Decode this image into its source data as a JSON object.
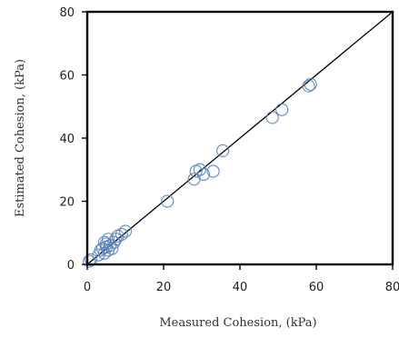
{
  "chart_data": {
    "type": "scatter",
    "title": "",
    "xlabel": "Measured Cohesion, (kPa)",
    "ylabel": "Estimated Cohesion, (kPa)",
    "xlim": [
      0,
      80
    ],
    "ylim": [
      0,
      80
    ],
    "xticks": [
      "0",
      "20",
      "40",
      "60",
      "80"
    ],
    "yticks": [
      "0",
      "20",
      "40",
      "60",
      "80"
    ],
    "grid": false,
    "legend": "none",
    "reference_line": {
      "x": [
        0,
        80
      ],
      "y": [
        0,
        80
      ]
    },
    "series": [
      {
        "color": "#5b87c0",
        "marker": "open-circle",
        "points": [
          [
            0.5,
            1.0
          ],
          [
            1.0,
            1.5
          ],
          [
            3.0,
            3.0
          ],
          [
            3.5,
            4.5
          ],
          [
            4.0,
            5.0
          ],
          [
            4.5,
            3.5
          ],
          [
            5.0,
            5.5
          ],
          [
            5.5,
            4.5
          ],
          [
            5.0,
            6.5
          ],
          [
            6.0,
            6.0
          ],
          [
            6.5,
            5.0
          ],
          [
            7.0,
            7.0
          ],
          [
            7.5,
            8.0
          ],
          [
            8.0,
            9.0
          ],
          [
            9.0,
            9.5
          ],
          [
            10.0,
            10.5
          ],
          [
            4.5,
            7.0
          ],
          [
            5.5,
            8.0
          ],
          [
            21.0,
            20.0
          ],
          [
            28.0,
            27.0
          ],
          [
            28.5,
            29.5
          ],
          [
            29.5,
            30.0
          ],
          [
            30.5,
            28.5
          ],
          [
            33.0,
            29.5
          ],
          [
            35.5,
            36.0
          ],
          [
            48.5,
            46.5
          ],
          [
            51.0,
            49.0
          ],
          [
            58.0,
            56.5
          ],
          [
            58.5,
            57.0
          ]
        ]
      }
    ]
  }
}
